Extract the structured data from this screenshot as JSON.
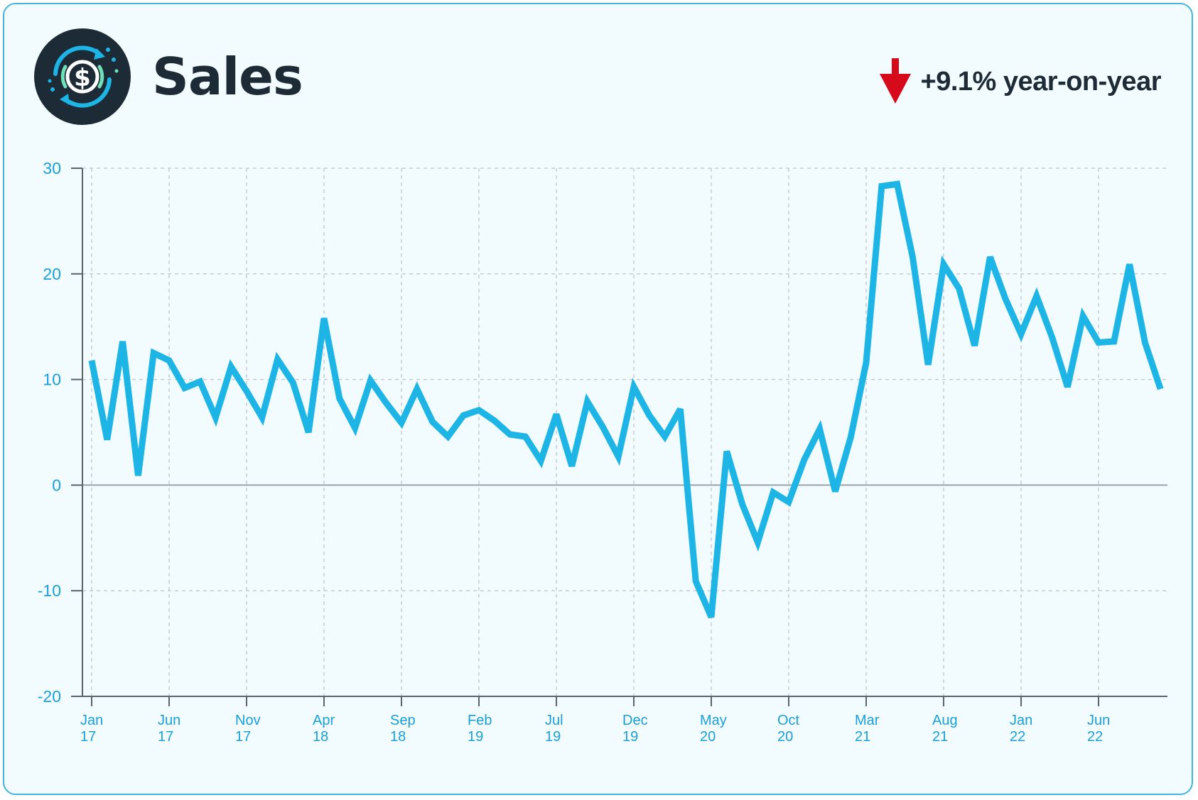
{
  "header": {
    "title": "Sales",
    "yoy_label": "+9.1% year-on-year"
  },
  "colors": {
    "line": "#1db4e6",
    "accent_down": "#d60a1a",
    "title": "#1d2b36",
    "tick": "#1aa0d8"
  },
  "icons": {
    "logo": "dollar-cycle-icon",
    "trend": "arrow-down-icon"
  },
  "chart_data": {
    "type": "line",
    "title": "Sales",
    "ylim": [
      -20,
      30
    ],
    "yticks": [
      30,
      20,
      10,
      0,
      -10,
      -20
    ],
    "grid": true,
    "x_ticks": [
      {
        "month": "Jan",
        "year": "17",
        "index": 0
      },
      {
        "month": "Jun",
        "year": "17",
        "index": 5
      },
      {
        "month": "Nov",
        "year": "17",
        "index": 10
      },
      {
        "month": "Apr",
        "year": "18",
        "index": 15
      },
      {
        "month": "Sep",
        "year": "18",
        "index": 20
      },
      {
        "month": "Feb",
        "year": "19",
        "index": 25
      },
      {
        "month": "Jul",
        "year": "19",
        "index": 30
      },
      {
        "month": "Dec",
        "year": "19",
        "index": 35
      },
      {
        "month": "May",
        "year": "20",
        "index": 40
      },
      {
        "month": "Oct",
        "year": "20",
        "index": 45
      },
      {
        "month": "Mar",
        "year": "21",
        "index": 50
      },
      {
        "month": "Aug",
        "year": "21",
        "index": 55
      },
      {
        "month": "Jan",
        "year": "22",
        "index": 60
      },
      {
        "month": "Jun",
        "year": "22",
        "index": 65
      }
    ],
    "series": [
      {
        "values": [
          11.8,
          4.3,
          13.6,
          0.9,
          12.5,
          11.8,
          9.2,
          9.8,
          6.4,
          11.2,
          8.9,
          6.4,
          11.9,
          9.7,
          5.0,
          15.8,
          8.2,
          5.4,
          9.9,
          7.8,
          5.9,
          9.1,
          6.0,
          4.6,
          6.6,
          7.1,
          6.1,
          4.8,
          4.6,
          2.3,
          6.7,
          1.8,
          7.9,
          5.5,
          2.7,
          9.3,
          6.6,
          4.6,
          7.2,
          -9.1,
          -12.5,
          3.2,
          -1.8,
          -5.4,
          -0.7,
          -1.6,
          2.4,
          5.3,
          -0.6,
          4.5,
          11.6,
          28.3,
          28.5,
          21.6,
          11.4,
          20.9,
          18.6,
          13.2,
          21.6,
          17.6,
          14.3,
          17.9,
          14.0,
          9.3,
          16.0,
          13.5,
          13.6,
          20.9,
          13.5,
          9.1
        ]
      }
    ]
  }
}
